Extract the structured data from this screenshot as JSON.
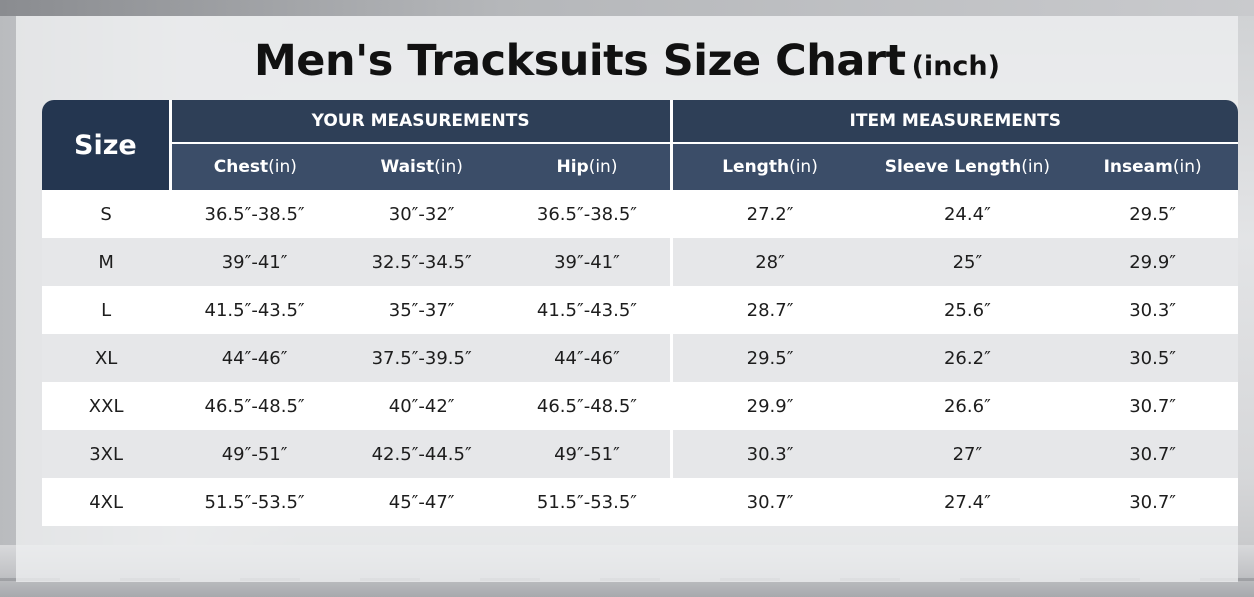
{
  "title": "Men's Tracksuits Size Chart",
  "title_unit": "(inch)",
  "header": {
    "size_label": "Size",
    "group_your": "YOUR MEASUREMENTS",
    "group_item": "ITEM MEASUREMENTS",
    "columns": [
      {
        "name": "Chest",
        "unit": "(in)"
      },
      {
        "name": "Waist",
        "unit": "(in)"
      },
      {
        "name": "Hip",
        "unit": "(in)"
      },
      {
        "name": "Length",
        "unit": "(in)"
      },
      {
        "name": "Sleeve Length",
        "unit": "(in)"
      },
      {
        "name": "Inseam",
        "unit": "(in)"
      }
    ]
  },
  "rows": [
    [
      "S",
      "36.5″-38.5″",
      "30″-32″",
      "36.5″-38.5″",
      "27.2″",
      "24.4″",
      "29.5″"
    ],
    [
      "M",
      "39″-41″",
      "32.5″-34.5″",
      "39″-41″",
      "28″",
      "25″",
      "29.9″"
    ],
    [
      "L",
      "41.5″-43.5″",
      "35″-37″",
      "41.5″-43.5″",
      "28.7″",
      "25.6″",
      "30.3″"
    ],
    [
      "XL",
      "44″-46″",
      "37.5″-39.5″",
      "44″-46″",
      "29.5″",
      "26.2″",
      "30.5″"
    ],
    [
      "XXL",
      "46.5″-48.5″",
      "40″-42″",
      "46.5″-48.5″",
      "29.9″",
      "26.6″",
      "30.7″"
    ],
    [
      "3XL",
      "49″-51″",
      "42.5″-44.5″",
      "49″-51″",
      "30.3″",
      "27″",
      "30.7″"
    ],
    [
      "4XL",
      "51.5″-53.5″",
      "45″-47″",
      "51.5″-53.5″",
      "30.7″",
      "27.4″",
      "30.7″"
    ]
  ],
  "colors": {
    "header_dark": "#243650",
    "header": "#2e3f57",
    "subheader": "#3b4d68",
    "row_alt": "#e6e7e9"
  }
}
